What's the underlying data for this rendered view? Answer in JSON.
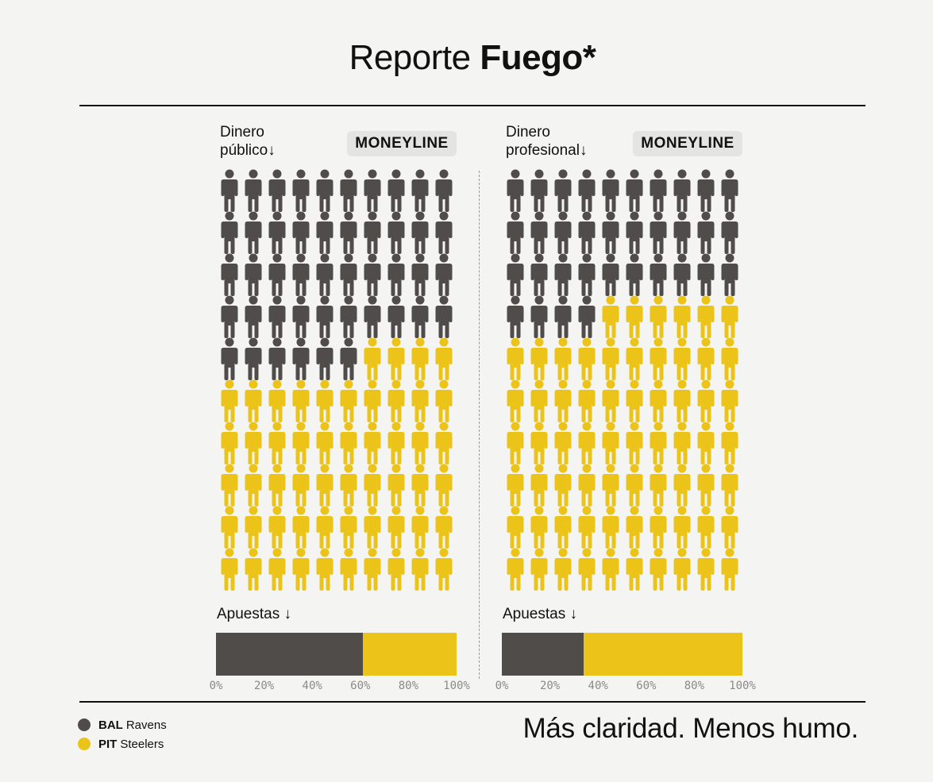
{
  "header": {
    "title_light": "Reporte ",
    "title_bold": "Fuego*"
  },
  "colors": {
    "ravens": "#4f4c49",
    "steelers": "#ecc419",
    "background": "#f4f4f2",
    "rule": "#111111"
  },
  "chart_data": [
    {
      "type": "waffle",
      "label_line1": "Dinero",
      "label_line2": "público↓",
      "badge": "MONEYLINE",
      "rows": 10,
      "cols": 10,
      "series": [
        {
          "name": "BAL Ravens",
          "value": 46,
          "color": "#4f4c49"
        },
        {
          "name": "PIT Steelers",
          "value": 54,
          "color": "#ecc419"
        }
      ],
      "bets": {
        "label": "Apuestas ↓",
        "values": [
          {
            "name": "BAL Ravens",
            "value": 61
          },
          {
            "name": "PIT Steelers",
            "value": 39
          }
        ],
        "ticks": [
          "0%",
          "20%",
          "40%",
          "60%",
          "80%",
          "100%"
        ]
      }
    },
    {
      "type": "waffle",
      "label_line1": "Dinero",
      "label_line2": "profesional↓",
      "badge": "MONEYLINE",
      "rows": 10,
      "cols": 10,
      "series": [
        {
          "name": "BAL Ravens",
          "value": 34,
          "color": "#4f4c49"
        },
        {
          "name": "PIT Steelers",
          "value": 66,
          "color": "#ecc419"
        }
      ],
      "bets": {
        "label": "Apuestas ↓",
        "values": [
          {
            "name": "BAL Ravens",
            "value": 34
          },
          {
            "name": "PIT Steelers",
            "value": 66
          }
        ],
        "ticks": [
          "0%",
          "20%",
          "40%",
          "60%",
          "80%",
          "100%"
        ]
      }
    }
  ],
  "legend": [
    {
      "team": "BAL",
      "name": "Ravens",
      "color": "#4f4c49",
      "icon": "circle-dot-icon"
    },
    {
      "team": "PIT",
      "name": "Steelers",
      "color": "#ecc419",
      "icon": "circle-dot-icon"
    }
  ],
  "footer": {
    "tagline": "Más claridad. Menos humo."
  }
}
